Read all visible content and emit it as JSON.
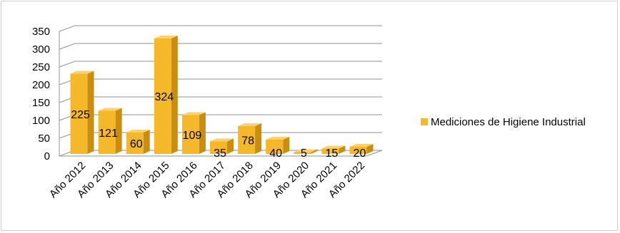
{
  "chart_data": {
    "type": "bar",
    "categories": [
      "Año 2012",
      "Año 2013",
      "Año 2014",
      "Año 2015",
      "Año 2016",
      "Año 2017",
      "Año 2018",
      "Año 2019",
      "Año 2020",
      "Año 2021",
      "Año 2022"
    ],
    "series": [
      {
        "name": "Mediciones de Higiene Industrial",
        "values": [
          225,
          121,
          60,
          324,
          109,
          35,
          78,
          40,
          5,
          15,
          20
        ]
      }
    ],
    "ylim": [
      0,
      350
    ],
    "yticks": [
      "0",
      "50",
      "100",
      "150",
      "200",
      "250",
      "300",
      "350"
    ],
    "grid": true,
    "legend_position": "right",
    "colors": {
      "bar_front": "#f6b82b",
      "bar_side": "#c98e0f",
      "bar_top": "#fbd26a",
      "grid": "#a6a6a6"
    }
  }
}
